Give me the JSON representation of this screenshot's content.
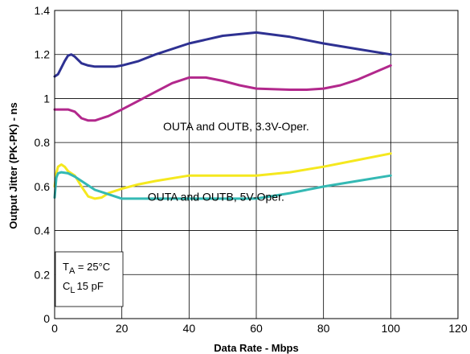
{
  "chart_data": {
    "type": "line",
    "title": "",
    "xlabel": "Data Rate - Mbps",
    "ylabel": "Output Jitter (PK-PK) - ns",
    "xlim": [
      0,
      120
    ],
    "ylim": [
      0,
      1.4
    ],
    "xticks": [
      0,
      20,
      40,
      60,
      80,
      100,
      120
    ],
    "xtick_labels": [
      "0",
      "20",
      "40",
      "60",
      "80",
      "100",
      "120"
    ],
    "yticks": [
      0,
      0.2,
      0.4,
      0.6,
      0.8,
      1,
      1.2,
      1.4
    ],
    "ytick_labels": [
      "0",
      "0.2",
      "0.4",
      "0.6",
      "0.8",
      "1",
      "1.2",
      "1.4"
    ],
    "grid": true,
    "annotations": [
      {
        "text": "OUTA and OUTB, 3.3V-Oper.",
        "x": 54,
        "y": 0.855
      },
      {
        "text": "OUTA and OUTB, 5V-Oper.",
        "x": 48,
        "y": 0.535
      }
    ],
    "conditions": {
      "ta_label": "T",
      "ta_sub": "A",
      "ta_value": " = 25°C",
      "cl_label": "C",
      "cl_sub": "L",
      "cl_value": "15 pF"
    },
    "series": [
      {
        "color": "#2e3192",
        "x": [
          0,
          1,
          2,
          3,
          4,
          5,
          6,
          7,
          8,
          10,
          12,
          14,
          16,
          18,
          20,
          25,
          30,
          40,
          50,
          60,
          70,
          80,
          90,
          100
        ],
        "y": [
          1.1,
          1.11,
          1.14,
          1.17,
          1.195,
          1.2,
          1.19,
          1.175,
          1.16,
          1.15,
          1.145,
          1.145,
          1.145,
          1.145,
          1.15,
          1.17,
          1.2,
          1.25,
          1.285,
          1.3,
          1.28,
          1.25,
          1.225,
          1.2
        ]
      },
      {
        "color": "#b2288c",
        "x": [
          0,
          2,
          4,
          6,
          8,
          10,
          12,
          14,
          16,
          18,
          20,
          25,
          30,
          35,
          40,
          45,
          50,
          55,
          60,
          70,
          75,
          80,
          85,
          90,
          100
        ],
        "y": [
          0.95,
          0.95,
          0.95,
          0.94,
          0.91,
          0.9,
          0.9,
          0.91,
          0.92,
          0.935,
          0.95,
          0.99,
          1.03,
          1.07,
          1.095,
          1.095,
          1.08,
          1.06,
          1.045,
          1.04,
          1.04,
          1.045,
          1.06,
          1.085,
          1.15
        ]
      },
      {
        "color": "#f5e81e",
        "x": [
          0,
          0.5,
          1,
          2,
          3,
          4,
          6,
          8,
          10,
          12,
          14,
          16,
          18,
          20,
          25,
          30,
          40,
          50,
          60,
          70,
          80,
          90,
          100
        ],
        "y": [
          0.6,
          0.66,
          0.69,
          0.7,
          0.69,
          0.67,
          0.65,
          0.6,
          0.555,
          0.545,
          0.55,
          0.57,
          0.58,
          0.59,
          0.61,
          0.625,
          0.65,
          0.65,
          0.65,
          0.665,
          0.69,
          0.72,
          0.75
        ]
      },
      {
        "color": "#34b9b4",
        "x": [
          0,
          0.5,
          1,
          2,
          4,
          6,
          8,
          10,
          12,
          14,
          16,
          18,
          20,
          30,
          40,
          50,
          60,
          70,
          80,
          90,
          100
        ],
        "y": [
          0.55,
          0.64,
          0.66,
          0.665,
          0.66,
          0.645,
          0.625,
          0.605,
          0.585,
          0.575,
          0.565,
          0.555,
          0.545,
          0.545,
          0.545,
          0.545,
          0.545,
          0.57,
          0.6,
          0.625,
          0.65
        ]
      }
    ]
  }
}
